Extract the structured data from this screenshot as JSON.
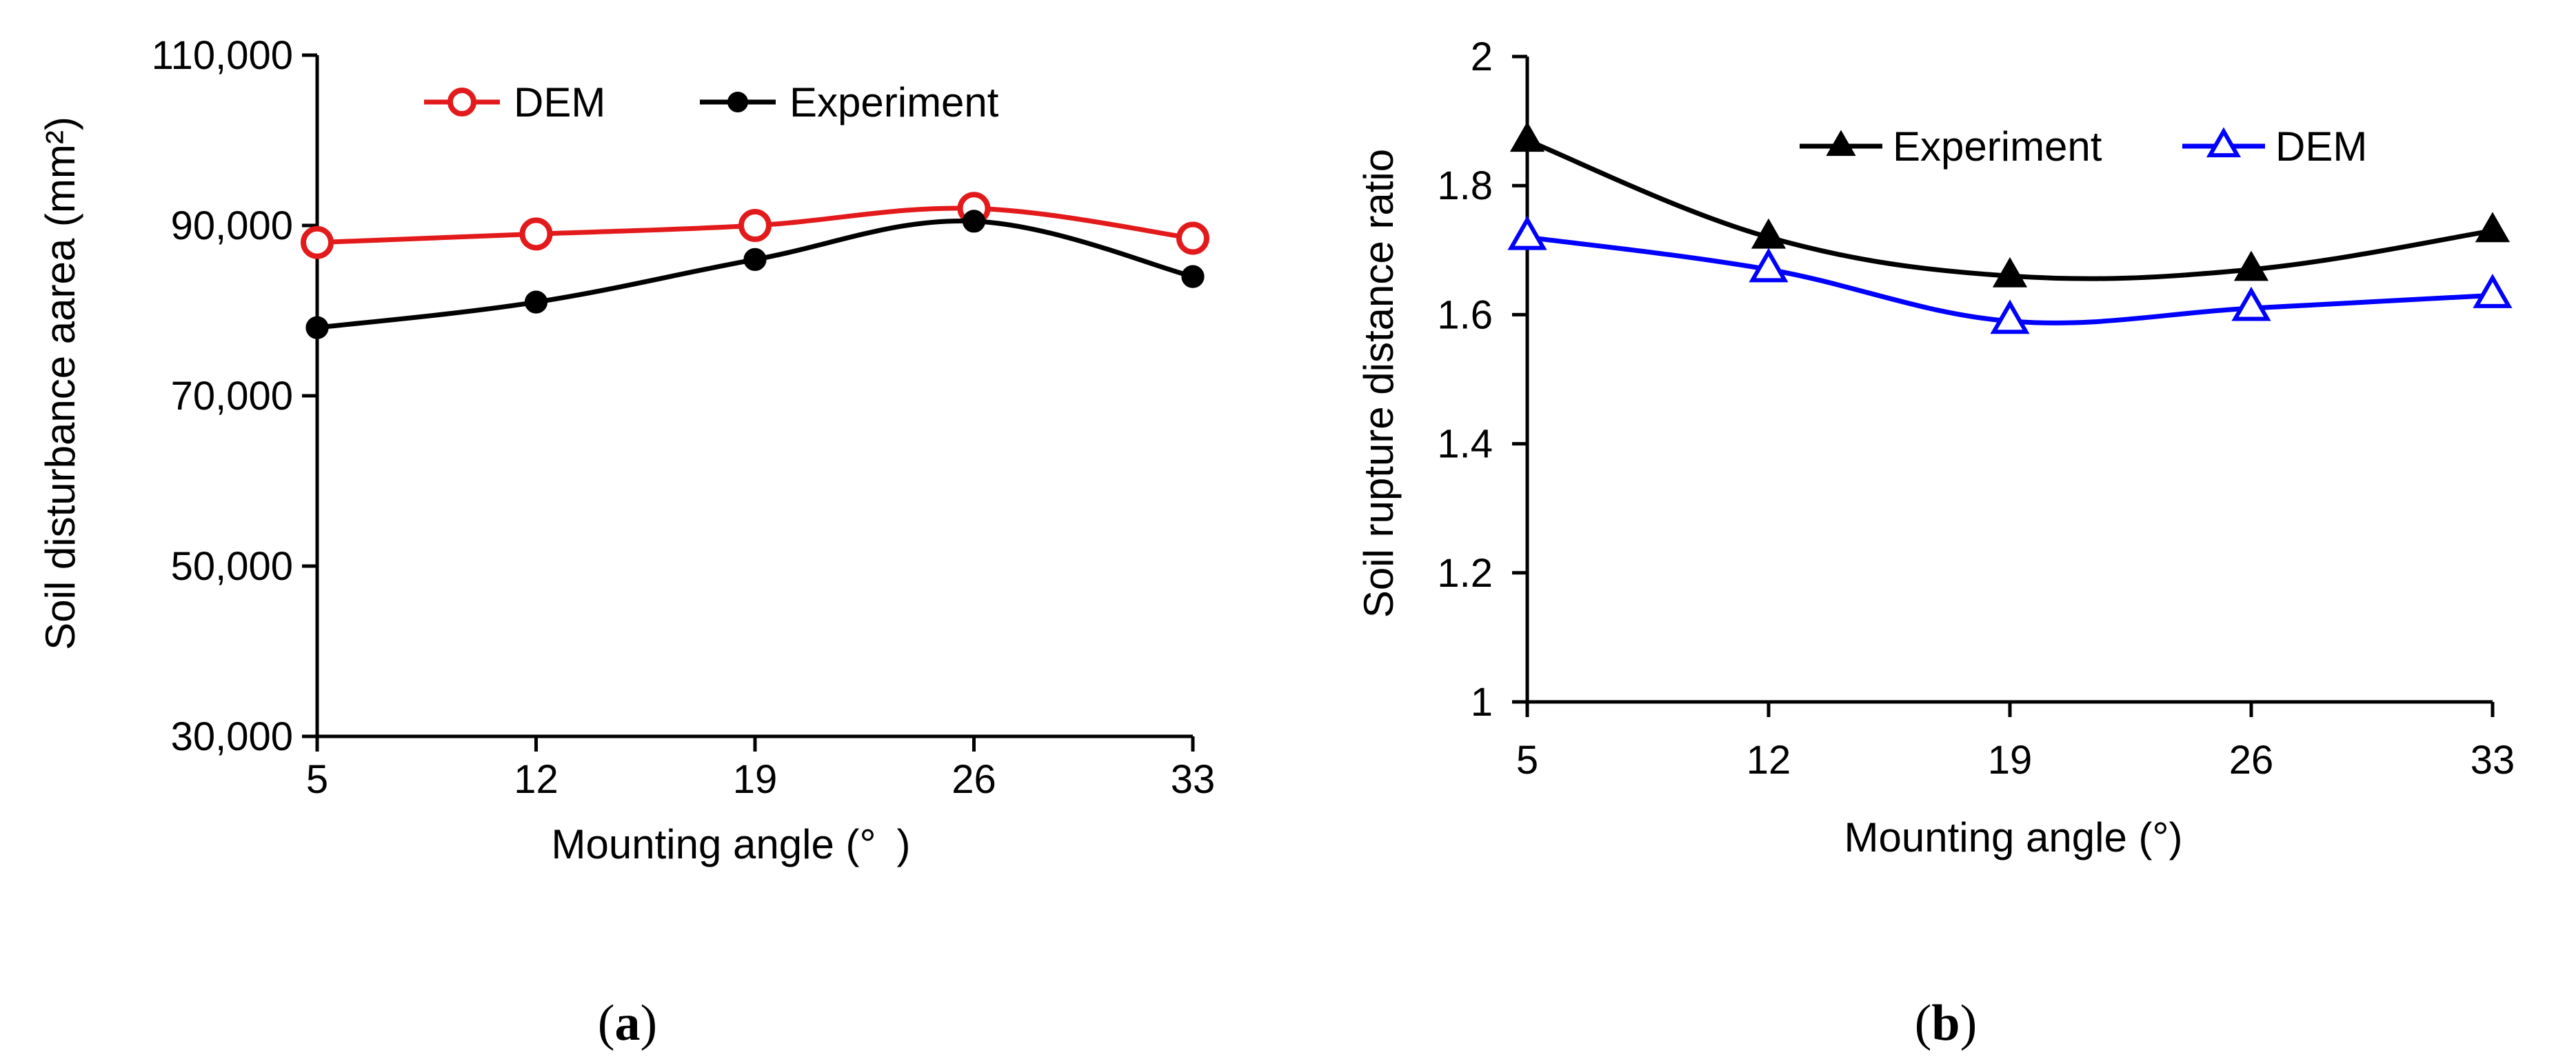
{
  "chart_data": [
    {
      "panel": "a",
      "caption": {
        "open": "(",
        "letter": "a",
        "close": ")"
      },
      "type": "line",
      "x": [
        5,
        12,
        19,
        26,
        33
      ],
      "xticks": [
        "5",
        "12",
        "19",
        "26",
        "33"
      ],
      "xlabel": "Mounting angle (° )",
      "ylabel": "Soil disturbance aarea (mm²)",
      "ylim": [
        30000,
        110000
      ],
      "yticks": [
        30000,
        50000,
        70000,
        90000,
        110000
      ],
      "ytick_labels": [
        "30,000",
        "50,000",
        "70,000",
        "90,000",
        "110,000"
      ],
      "grid": false,
      "legend_position": "top",
      "series": [
        {
          "name": "DEM",
          "values": [
            88000,
            89000,
            90000,
            92000,
            88500
          ],
          "color": "#e31a1c",
          "marker": "open-circle"
        },
        {
          "name": "Experiment",
          "values": [
            78000,
            81000,
            86000,
            90500,
            84000
          ],
          "color": "#000000",
          "marker": "filled-circle"
        }
      ]
    },
    {
      "panel": "b",
      "caption": {
        "open": "(",
        "letter": "b",
        "close": ")"
      },
      "type": "line",
      "x": [
        5,
        12,
        19,
        26,
        33
      ],
      "xticks": [
        "5",
        "12",
        "19",
        "26",
        "33"
      ],
      "xlabel": "Mounting angle (°)",
      "ylabel": "Soil rupture distance ratio",
      "ylim": [
        1,
        2
      ],
      "yticks": [
        1,
        1.2,
        1.4,
        1.6,
        1.8,
        2
      ],
      "ytick_labels": [
        "1",
        "1.2",
        "1.4",
        "1.6",
        "1.8",
        "2"
      ],
      "grid": false,
      "legend_position": "top-right",
      "series": [
        {
          "name": "Experiment",
          "values": [
            1.87,
            1.72,
            1.66,
            1.67,
            1.73
          ],
          "color": "#000000",
          "marker": "filled-triangle"
        },
        {
          "name": "DEM",
          "values": [
            1.72,
            1.67,
            1.59,
            1.61,
            1.63
          ],
          "color": "#0000ff",
          "marker": "open-triangle"
        }
      ]
    }
  ]
}
